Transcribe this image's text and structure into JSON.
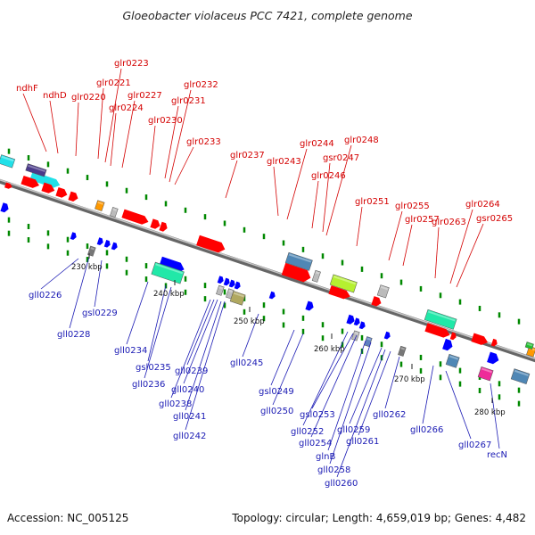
{
  "title": "Gloeobacter violaceus PCC 7421, complete genome",
  "footer": {
    "accession": "Accession: NC_005125",
    "topology": "Topology: circular; Length: 4,659,019 bp; Genes: 4,482"
  },
  "colors": {
    "forward": "#ff0000",
    "reverse": "#0000ff",
    "top_label": "#d40000",
    "bottom_label": "#1a1ab4",
    "backbone": "#888888",
    "tick": "#008800"
  },
  "scale_labels": [
    "230 kbp",
    "240 kbp",
    "250 kbp",
    "260 kbp",
    "270 kbp",
    "280 kbp"
  ],
  "top_genes": [
    "ndhF",
    "ndhD",
    "glr0220",
    "glr0221",
    "glr0223",
    "glr0224",
    "glr0227",
    "glr0230",
    "glr0231",
    "glr0232",
    "glr0233",
    "glr0237",
    "glr0243",
    "glr0244",
    "glr0246",
    "gsr0247",
    "glr0248",
    "glr0251",
    "glr0255",
    "glr0257",
    "glr0263",
    "glr0264",
    "gsr0265"
  ],
  "bottom_genes": [
    "gll0226",
    "gll0228",
    "gsl0229",
    "gll0234",
    "gsl0235",
    "gll0236",
    "gll0238",
    "gll0239",
    "gll0240",
    "gll0241",
    "gll0242",
    "gll0245",
    "gsl0249",
    "gll0250",
    "gll0252",
    "gsl0253",
    "gll0254",
    "glnB",
    "gll0258",
    "gll0259",
    "gll0260",
    "gll0261",
    "gll0262",
    "gll0266",
    "gll0267",
    "recN"
  ]
}
